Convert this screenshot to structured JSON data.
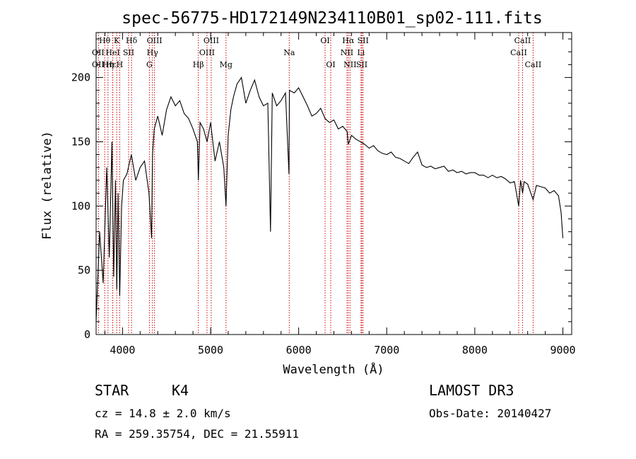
{
  "chart_data": {
    "type": "line",
    "title": "spec-56775-HD172149N234110B01_sp02-111.fits",
    "xlabel": "Wavelength (Å)",
    "ylabel": "Flux (relative)",
    "xlim": [
      3700,
      9100
    ],
    "ylim": [
      0,
      235
    ],
    "xticks": [
      4000,
      5000,
      6000,
      7000,
      8000,
      9000
    ],
    "yticks": [
      0,
      50,
      100,
      150,
      200
    ],
    "grid": false,
    "series": [
      {
        "name": "flux",
        "x": [
          3700,
          3740,
          3780,
          3820,
          3850,
          3880,
          3900,
          3920,
          3935,
          3950,
          3968,
          3990,
          4010,
          4050,
          4100,
          4150,
          4200,
          4250,
          4300,
          4330,
          4340,
          4360,
          4400,
          4450,
          4500,
          4550,
          4600,
          4650,
          4700,
          4750,
          4800,
          4850,
          4861,
          4880,
          4920,
          4960,
          5000,
          5050,
          5100,
          5150,
          5175,
          5200,
          5230,
          5260,
          5300,
          5350,
          5400,
          5450,
          5500,
          5550,
          5600,
          5650,
          5680,
          5700,
          5750,
          5800,
          5850,
          5890,
          5895,
          5950,
          6000,
          6050,
          6100,
          6150,
          6200,
          6250,
          6300,
          6350,
          6400,
          6450,
          6500,
          6550,
          6563,
          6600,
          6650,
          6700,
          6750,
          6800,
          6850,
          6900,
          6950,
          7000,
          7050,
          7100,
          7150,
          7200,
          7250,
          7300,
          7350,
          7400,
          7450,
          7500,
          7550,
          7600,
          7650,
          7700,
          7750,
          7800,
          7850,
          7900,
          7950,
          8000,
          8050,
          8100,
          8150,
          8200,
          8250,
          8300,
          8350,
          8400,
          8450,
          8498,
          8520,
          8542,
          8560,
          8600,
          8662,
          8700,
          8750,
          8800,
          8850,
          8900,
          8950,
          8980,
          9000
        ],
        "y": [
          10,
          80,
          40,
          130,
          60,
          150,
          45,
          120,
          35,
          110,
          30,
          100,
          120,
          125,
          140,
          120,
          130,
          135,
          110,
          75,
          140,
          160,
          170,
          155,
          175,
          185,
          178,
          182,
          172,
          168,
          160,
          150,
          120,
          165,
          160,
          150,
          165,
          135,
          150,
          130,
          100,
          155,
          175,
          185,
          195,
          200,
          180,
          190,
          198,
          185,
          178,
          180,
          80,
          188,
          178,
          182,
          188,
          125,
          190,
          188,
          192,
          185,
          178,
          170,
          172,
          176,
          168,
          165,
          167,
          160,
          162,
          158,
          148,
          155,
          152,
          150,
          148,
          145,
          147,
          143,
          141,
          140,
          142,
          138,
          137,
          135,
          133,
          138,
          142,
          132,
          130,
          131,
          129,
          130,
          131,
          127,
          128,
          126,
          127,
          125,
          126,
          126,
          124,
          124,
          122,
          124,
          122,
          123,
          121,
          118,
          119,
          100,
          120,
          110,
          119,
          117,
          105,
          116,
          115,
          114,
          110,
          112,
          108,
          95,
          75
        ]
      }
    ],
    "annotations": {
      "tops": [
        "Hθ",
        "K",
        "Hδ",
        "OIII",
        "OIII",
        "OI",
        "Hα",
        "SII",
        "CaII"
      ],
      "mids": [
        "OII",
        "HeI",
        "SII",
        "Hγ",
        "OIII",
        "Na",
        "NII",
        "Li",
        "CaII"
      ],
      "lows": [
        "OII",
        "Hη",
        "H",
        "G",
        "Hβ",
        "Mg",
        "OI",
        "NII",
        "SII",
        "CaII"
      ],
      "bottoms": [
        "Hε"
      ]
    },
    "lines": [
      {
        "label": "Hθ",
        "x": 3798
      },
      {
        "label": "OII",
        "x": 3727
      },
      {
        "label": "Hη",
        "x": 3835
      },
      {
        "label": "Hε",
        "x": 3889
      },
      {
        "label": "HeI",
        "x": 3889
      },
      {
        "label": "K",
        "x": 3934
      },
      {
        "label": "H",
        "x": 3968
      },
      {
        "label": "SII",
        "x": 4069
      },
      {
        "label": "Hδ",
        "x": 4102
      },
      {
        "label": "G",
        "x": 4305
      },
      {
        "label": "Hγ",
        "x": 4340
      },
      {
        "label": "OIII",
        "x": 4363
      },
      {
        "label": "Hβ",
        "x": 4861
      },
      {
        "label": "OIII",
        "x": 4959
      },
      {
        "label": "OIII",
        "x": 5007
      },
      {
        "label": "Mg",
        "x": 5175
      },
      {
        "label": "Na",
        "x": 5893
      },
      {
        "label": "OI",
        "x": 6300
      },
      {
        "label": "OI",
        "x": 6364
      },
      {
        "label": "NII",
        "x": 6548
      },
      {
        "label": "Hα",
        "x": 6563
      },
      {
        "label": "NII",
        "x": 6583
      },
      {
        "label": "Li",
        "x": 6708
      },
      {
        "label": "SII",
        "x": 6717
      },
      {
        "label": "SII",
        "x": 6731
      },
      {
        "label": "CaII",
        "x": 8498
      },
      {
        "label": "CaII",
        "x": 8542
      },
      {
        "label": "CaII",
        "x": 8662
      }
    ]
  },
  "info": {
    "class_label": "STAR",
    "subclass": "K4",
    "survey": "LAMOST DR3",
    "cz": "cz = 14.8 ± 2.0 km/s",
    "obs_date": "Obs-Date: 20140427",
    "coords": "RA = 259.35754, DEC =  21.55911"
  },
  "colors": {
    "spectrum": "#000000",
    "line_markers": "#cc0000",
    "axes": "#000000"
  }
}
